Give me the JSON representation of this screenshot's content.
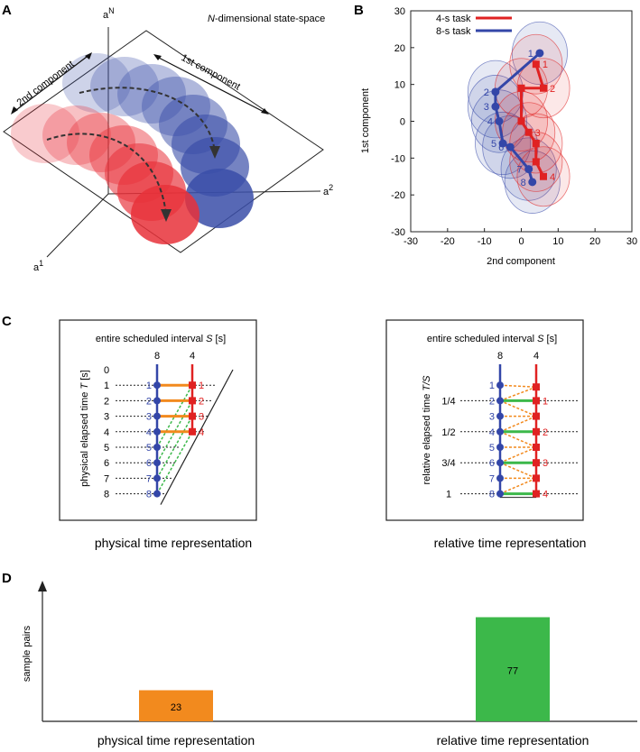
{
  "panels": {
    "a": {
      "label": "A",
      "title_italic": "N",
      "title_rest": "-dimensional state-space",
      "axis_n": "a",
      "axis_n_sup": "N",
      "axis_1": "a",
      "axis_1_sup": "1",
      "axis_2": "a",
      "axis_2_sup": "2",
      "first_component": "1st component",
      "second_component": "2nd component",
      "colors": {
        "red": "#e8313a",
        "blue": "#3a4ea8"
      }
    },
    "b": {
      "label": "B",
      "legend": [
        {
          "label": "4-s task",
          "color": "#e02222"
        },
        {
          "label": "8-s task",
          "color": "#3346a8"
        }
      ],
      "xlabel": "2nd component",
      "ylabel": "1st component",
      "xticks": [
        "-30",
        "-20",
        "-10",
        "0",
        "10",
        "20",
        "30"
      ],
      "yticks": [
        "30",
        "20",
        "10",
        "0",
        "-10",
        "-20",
        "-30"
      ],
      "xlim": [
        -30,
        30
      ],
      "ylim": [
        -30,
        30
      ],
      "blue_points": [
        {
          "label": "1",
          "x": 5,
          "y": 18.5
        },
        {
          "label": "2",
          "x": -7,
          "y": 8
        },
        {
          "label": "3",
          "x": -7,
          "y": 4
        },
        {
          "label": "4",
          "x": -6,
          "y": 0
        },
        {
          "label": "5",
          "x": -5,
          "y": -6
        },
        {
          "label": "6",
          "x": -3,
          "y": -7
        },
        {
          "label": "7",
          "x": 2,
          "y": -13
        },
        {
          "label": "8",
          "x": 3,
          "y": -16.5
        }
      ],
      "red_points": [
        {
          "label": "1",
          "x": 4,
          "y": 15.5
        },
        {
          "label": "2",
          "x": 6,
          "y": 9
        },
        {
          "label": "",
          "x": 0,
          "y": 9
        },
        {
          "label": "",
          "x": 0,
          "y": 0
        },
        {
          "label": "3",
          "x": 2,
          "y": -3
        },
        {
          "label": "",
          "x": 4,
          "y": -6
        },
        {
          "label": "",
          "x": 4,
          "y": -11
        },
        {
          "label": "4",
          "x": 6,
          "y": -15
        }
      ]
    },
    "c": {
      "label": "C",
      "left": {
        "header_prefix": "entire scheduled interval ",
        "header_var": "S",
        "header_suffix": " [s]",
        "col_8": "8",
        "col_4": "4",
        "ylabel_prefix": "physical elapsed time ",
        "ylabel_var": "T",
        "ylabel_suffix": " [s]",
        "rows": [
          "0",
          "1",
          "2",
          "3",
          "4",
          "5",
          "6",
          "7",
          "8"
        ],
        "blue_labels": [
          "1",
          "2",
          "3",
          "4",
          "5",
          "6",
          "7",
          "8"
        ],
        "red_labels": [
          "1",
          "2",
          "3",
          "4"
        ],
        "caption": "physical time representation"
      },
      "right": {
        "header_prefix": "entire scheduled interval ",
        "header_var": "S",
        "header_suffix": " [s]",
        "col_8": "8",
        "col_4": "4",
        "ylabel_prefix": "relative elapsed time ",
        "ylabel_var": "T/S",
        "ylabel_suffix": "",
        "rows": [
          "1/4",
          "1/2",
          "3/4",
          "1"
        ],
        "blue_labels": [
          "1",
          "2",
          "3",
          "4",
          "5",
          "6",
          "7",
          "8"
        ],
        "red_labels": [
          "1",
          "2",
          "3",
          "4"
        ],
        "caption": "relative time representation"
      }
    },
    "d": {
      "label": "D",
      "ylabel": "sample pairs",
      "chart_data": {
        "type": "bar",
        "categories": [
          "physical time representation",
          "relative time representation"
        ],
        "values": [
          23,
          77
        ],
        "value_labels": [
          "23",
          "77"
        ],
        "colors": [
          "#f28a1e",
          "#3cb84a"
        ],
        "ylabel": "sample pairs",
        "ylim": [
          0,
          100
        ]
      }
    }
  }
}
